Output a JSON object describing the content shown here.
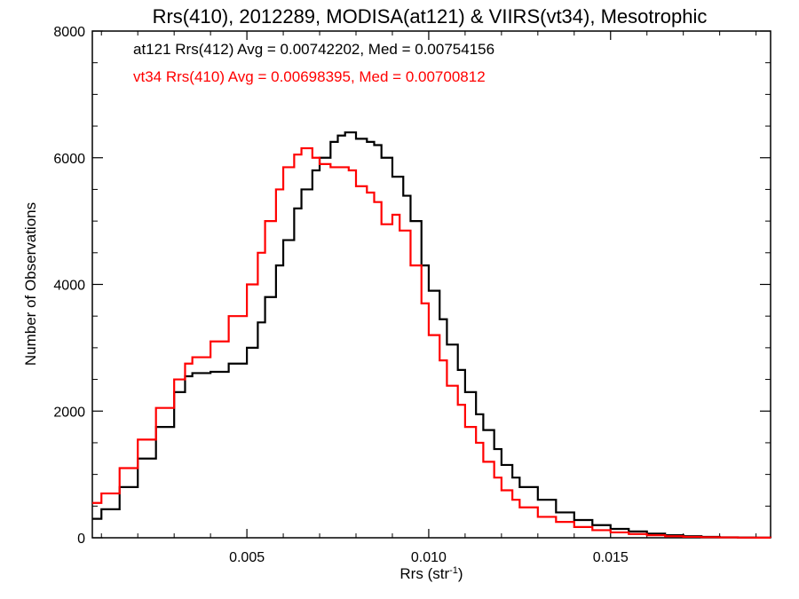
{
  "chart_data": {
    "type": "line",
    "title": "Rrs(410), 2012289, MODISA(at121) & VIIRS(vt34), Mesotrophic",
    "xlabel": "Rrs (str",
    "xlabel_sup": "-1",
    "xlabel_close": ")",
    "ylabel": "Number of Observations",
    "xlim": [
      0.00075,
      0.0194
    ],
    "ylim": [
      0,
      8000
    ],
    "x_ticks": [
      0.005,
      0.01,
      0.015
    ],
    "x_tick_labels": [
      "0.005",
      "0.010",
      "0.015"
    ],
    "y_ticks": [
      0,
      2000,
      4000,
      6000,
      8000
    ],
    "y_tick_labels": [
      "0",
      "2000",
      "4000",
      "6000",
      "8000"
    ],
    "grid": false,
    "step": true,
    "annotations": [
      {
        "text": "at121 Rrs(412) Avg = 0.00742202, Med = 0.00754156",
        "color": "#000000"
      },
      {
        "text": "vt34 Rrs(410) Avg = 0.00698395, Med = 0.00700812",
        "color": "#ff0000"
      }
    ],
    "series": [
      {
        "color": "#000000",
        "points": [
          [
            0.00075,
            300
          ],
          [
            0.001,
            450
          ],
          [
            0.0015,
            800
          ],
          [
            0.002,
            1250
          ],
          [
            0.0025,
            1750
          ],
          [
            0.003,
            2300
          ],
          [
            0.0033,
            2550
          ],
          [
            0.0035,
            2600
          ],
          [
            0.004,
            2620
          ],
          [
            0.0045,
            2750
          ],
          [
            0.005,
            3000
          ],
          [
            0.0053,
            3400
          ],
          [
            0.0055,
            3800
          ],
          [
            0.0058,
            4300
          ],
          [
            0.006,
            4700
          ],
          [
            0.0063,
            5200
          ],
          [
            0.0065,
            5500
          ],
          [
            0.0068,
            5800
          ],
          [
            0.007,
            6000
          ],
          [
            0.0073,
            6250
          ],
          [
            0.0075,
            6350
          ],
          [
            0.0077,
            6400
          ],
          [
            0.008,
            6300
          ],
          [
            0.0083,
            6250
          ],
          [
            0.0085,
            6200
          ],
          [
            0.0087,
            6000
          ],
          [
            0.009,
            5700
          ],
          [
            0.0093,
            5400
          ],
          [
            0.0095,
            5000
          ],
          [
            0.0098,
            4300
          ],
          [
            0.01,
            3900
          ],
          [
            0.0103,
            3450
          ],
          [
            0.0105,
            3050
          ],
          [
            0.0108,
            2650
          ],
          [
            0.011,
            2300
          ],
          [
            0.0113,
            1950
          ],
          [
            0.0115,
            1700
          ],
          [
            0.0118,
            1400
          ],
          [
            0.012,
            1150
          ],
          [
            0.0123,
            950
          ],
          [
            0.0125,
            800
          ],
          [
            0.013,
            600
          ],
          [
            0.0135,
            400
          ],
          [
            0.014,
            280
          ],
          [
            0.0145,
            200
          ],
          [
            0.015,
            140
          ],
          [
            0.0155,
            100
          ],
          [
            0.016,
            65
          ],
          [
            0.0165,
            40
          ],
          [
            0.017,
            25
          ],
          [
            0.0175,
            15
          ],
          [
            0.018,
            8
          ],
          [
            0.0185,
            4
          ],
          [
            0.019,
            2
          ],
          [
            0.0194,
            1
          ]
        ]
      },
      {
        "color": "#ff0000",
        "points": [
          [
            0.00075,
            550
          ],
          [
            0.001,
            700
          ],
          [
            0.0015,
            1100
          ],
          [
            0.002,
            1550
          ],
          [
            0.0025,
            2050
          ],
          [
            0.003,
            2500
          ],
          [
            0.0033,
            2750
          ],
          [
            0.0035,
            2850
          ],
          [
            0.004,
            3100
          ],
          [
            0.0045,
            3500
          ],
          [
            0.005,
            4000
          ],
          [
            0.0053,
            4500
          ],
          [
            0.0055,
            5000
          ],
          [
            0.0058,
            5500
          ],
          [
            0.006,
            5850
          ],
          [
            0.0063,
            6050
          ],
          [
            0.0065,
            6150
          ],
          [
            0.0068,
            6000
          ],
          [
            0.007,
            5900
          ],
          [
            0.0073,
            5850
          ],
          [
            0.0075,
            5850
          ],
          [
            0.0078,
            5800
          ],
          [
            0.008,
            5550
          ],
          [
            0.0083,
            5450
          ],
          [
            0.0085,
            5300
          ],
          [
            0.0087,
            4950
          ],
          [
            0.009,
            5100
          ],
          [
            0.0092,
            4850
          ],
          [
            0.0095,
            4300
          ],
          [
            0.0098,
            3700
          ],
          [
            0.01,
            3200
          ],
          [
            0.0103,
            2800
          ],
          [
            0.0105,
            2400
          ],
          [
            0.0108,
            2100
          ],
          [
            0.011,
            1750
          ],
          [
            0.0113,
            1500
          ],
          [
            0.0115,
            1200
          ],
          [
            0.0118,
            950
          ],
          [
            0.012,
            750
          ],
          [
            0.0123,
            600
          ],
          [
            0.0125,
            480
          ],
          [
            0.013,
            330
          ],
          [
            0.0135,
            250
          ],
          [
            0.014,
            170
          ],
          [
            0.0145,
            120
          ],
          [
            0.015,
            85
          ],
          [
            0.0155,
            60
          ],
          [
            0.016,
            40
          ],
          [
            0.0165,
            25
          ],
          [
            0.017,
            15
          ],
          [
            0.0175,
            10
          ],
          [
            0.018,
            6
          ],
          [
            0.0185,
            3
          ],
          [
            0.019,
            2
          ],
          [
            0.0194,
            1
          ]
        ]
      }
    ]
  }
}
